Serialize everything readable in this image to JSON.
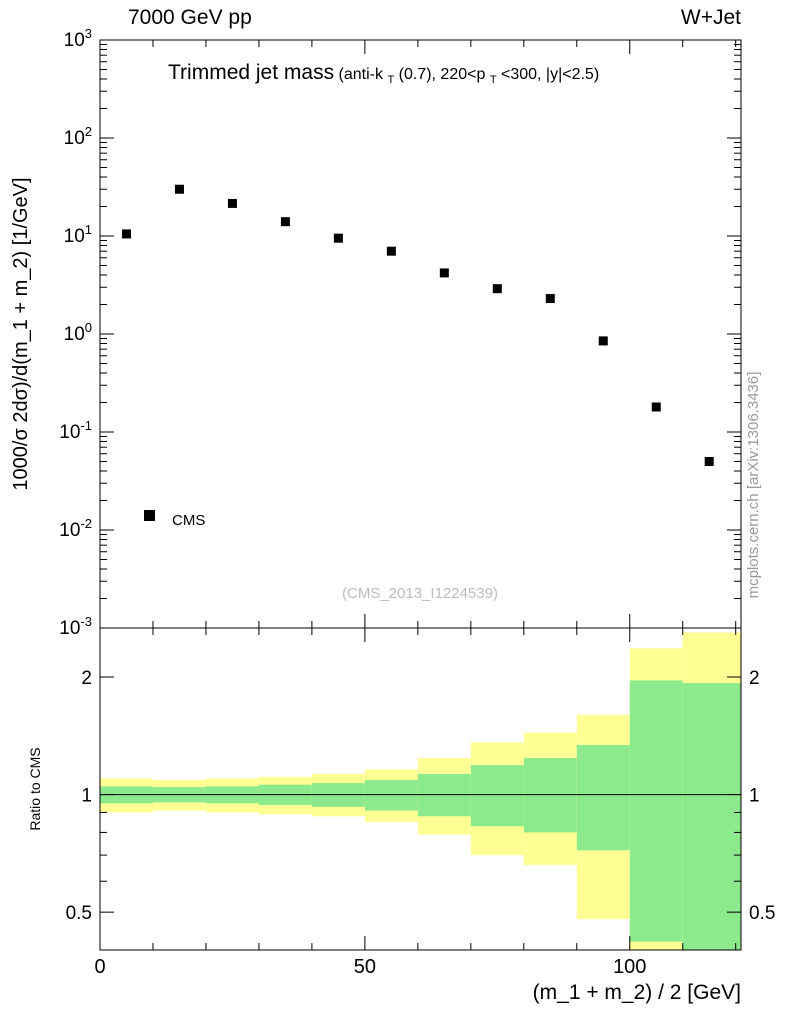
{
  "header": {
    "beam": "7000 GeV pp",
    "process": "W+Jet"
  },
  "side_credit": "mcplots.cern.ch [arXiv:1306.3436]",
  "watermark": "(CMS_2013_I1224539)",
  "chart_data": {
    "type": "scatter",
    "title": "Trimmed jet mass",
    "title_detail": {
      "p1": "(anti-k",
      "sub1": "T",
      "p2": "(0.7), 220<p",
      "sub2": "T",
      "p3": "<300, |y|<2.5)"
    },
    "xlabel": "(m_1 + m_2) / 2 [GeV]",
    "xlim": [
      0,
      121
    ],
    "xticks": [
      0,
      50,
      100
    ],
    "xtick_minor_step": 10,
    "top_panel": {
      "ylabel": "1000/σ 2dσ)/d(m_1 + m_2) [1/GeV]",
      "yscale": "log",
      "ylim_exponents": [
        -3,
        3
      ],
      "grid": false,
      "legend_position": "inside-left-middle",
      "series": [
        {
          "name": "CMS",
          "marker": "filled-square",
          "color": "#000000",
          "x": [
            5,
            15,
            25,
            35,
            45,
            55,
            65,
            75,
            85,
            95,
            105,
            115
          ],
          "y": [
            10.5,
            30,
            21.5,
            14,
            9.5,
            7,
            4.2,
            2.9,
            2.3,
            0.85,
            0.18,
            0.05
          ]
        }
      ]
    },
    "ratio_panel": {
      "ylabel": "Ratio to CMS",
      "yscale": "log",
      "ylim": [
        0.4,
        2.67
      ],
      "yticks_labeled": [
        0.5,
        1,
        2
      ],
      "yticks_minor": [
        0.4,
        0.6,
        0.7,
        0.8,
        0.9
      ],
      "reference_line": 1,
      "band_colors": {
        "outer": "#ffff94",
        "inner": "#8ce98c"
      },
      "bands": {
        "bin_edges": [
          0,
          10,
          20,
          30,
          40,
          50,
          60,
          70,
          80,
          90,
          100,
          110,
          121
        ],
        "outer_low": [
          0.9,
          0.91,
          0.9,
          0.89,
          0.88,
          0.85,
          0.79,
          0.7,
          0.66,
          0.48,
          0.3,
          0.3
        ],
        "outer_high": [
          1.1,
          1.09,
          1.1,
          1.11,
          1.13,
          1.16,
          1.24,
          1.36,
          1.44,
          1.6,
          2.37,
          2.6
        ],
        "inner_low": [
          0.95,
          0.955,
          0.95,
          0.94,
          0.93,
          0.91,
          0.88,
          0.83,
          0.8,
          0.72,
          0.42,
          0.4
        ],
        "inner_high": [
          1.05,
          1.045,
          1.05,
          1.06,
          1.07,
          1.09,
          1.13,
          1.19,
          1.24,
          1.34,
          1.96,
          1.93
        ]
      }
    }
  }
}
